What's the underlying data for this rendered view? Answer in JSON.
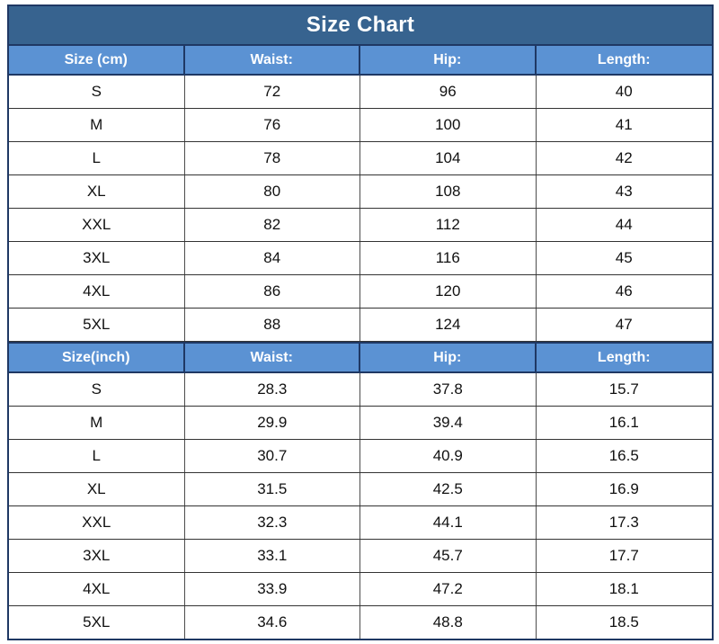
{
  "page": {
    "title": "Size Chart"
  },
  "colors": {
    "title_bg": "#37638F",
    "header_bg": "#5B92D3",
    "border_navy": "#1F3864",
    "row_divider": "#333333",
    "header_text": "#FFFFFF",
    "body_text": "#111111"
  },
  "table": {
    "sections": [
      {
        "unit": "cm",
        "headers": [
          "Size (cm)",
          "Waist:",
          "Hip:",
          "Length:"
        ],
        "rows": [
          [
            "S",
            "72",
            "96",
            "40"
          ],
          [
            "M",
            "76",
            "100",
            "41"
          ],
          [
            "L",
            "78",
            "104",
            "42"
          ],
          [
            "XL",
            "80",
            "108",
            "43"
          ],
          [
            "XXL",
            "82",
            "112",
            "44"
          ],
          [
            "3XL",
            "84",
            "116",
            "45"
          ],
          [
            "4XL",
            "86",
            "120",
            "46"
          ],
          [
            "5XL",
            "88",
            "124",
            "47"
          ]
        ]
      },
      {
        "unit": "inch",
        "headers": [
          "Size(inch)",
          "Waist:",
          "Hip:",
          "Length:"
        ],
        "rows": [
          [
            "S",
            "28.3",
            "37.8",
            "15.7"
          ],
          [
            "M",
            "29.9",
            "39.4",
            "16.1"
          ],
          [
            "L",
            "30.7",
            "40.9",
            "16.5"
          ],
          [
            "XL",
            "31.5",
            "42.5",
            "16.9"
          ],
          [
            "XXL",
            "32.3",
            "44.1",
            "17.3"
          ],
          [
            "3XL",
            "33.1",
            "45.7",
            "17.7"
          ],
          [
            "4XL",
            "33.9",
            "47.2",
            "18.1"
          ],
          [
            "5XL",
            "34.6",
            "48.8",
            "18.5"
          ]
        ]
      }
    ]
  },
  "chart_data": [
    {
      "type": "table",
      "title": "Size Chart",
      "columns": [
        "Size (cm)",
        "Waist:",
        "Hip:",
        "Length:"
      ],
      "rows": [
        [
          "S",
          72,
          96,
          40
        ],
        [
          "M",
          76,
          100,
          41
        ],
        [
          "L",
          78,
          104,
          42
        ],
        [
          "XL",
          80,
          108,
          43
        ],
        [
          "XXL",
          82,
          112,
          44
        ],
        [
          "3XL",
          84,
          116,
          45
        ],
        [
          "4XL",
          86,
          120,
          46
        ],
        [
          "5XL",
          88,
          124,
          47
        ]
      ]
    },
    {
      "type": "table",
      "title": "Size Chart",
      "columns": [
        "Size(inch)",
        "Waist:",
        "Hip:",
        "Length:"
      ],
      "rows": [
        [
          "S",
          28.3,
          37.8,
          15.7
        ],
        [
          "M",
          29.9,
          39.4,
          16.1
        ],
        [
          "L",
          30.7,
          40.9,
          16.5
        ],
        [
          "XL",
          31.5,
          42.5,
          16.9
        ],
        [
          "XXL",
          32.3,
          44.1,
          17.3
        ],
        [
          "3XL",
          33.1,
          45.7,
          17.7
        ],
        [
          "4XL",
          33.9,
          47.2,
          18.1
        ],
        [
          "5XL",
          34.6,
          48.8,
          18.5
        ]
      ]
    }
  ]
}
